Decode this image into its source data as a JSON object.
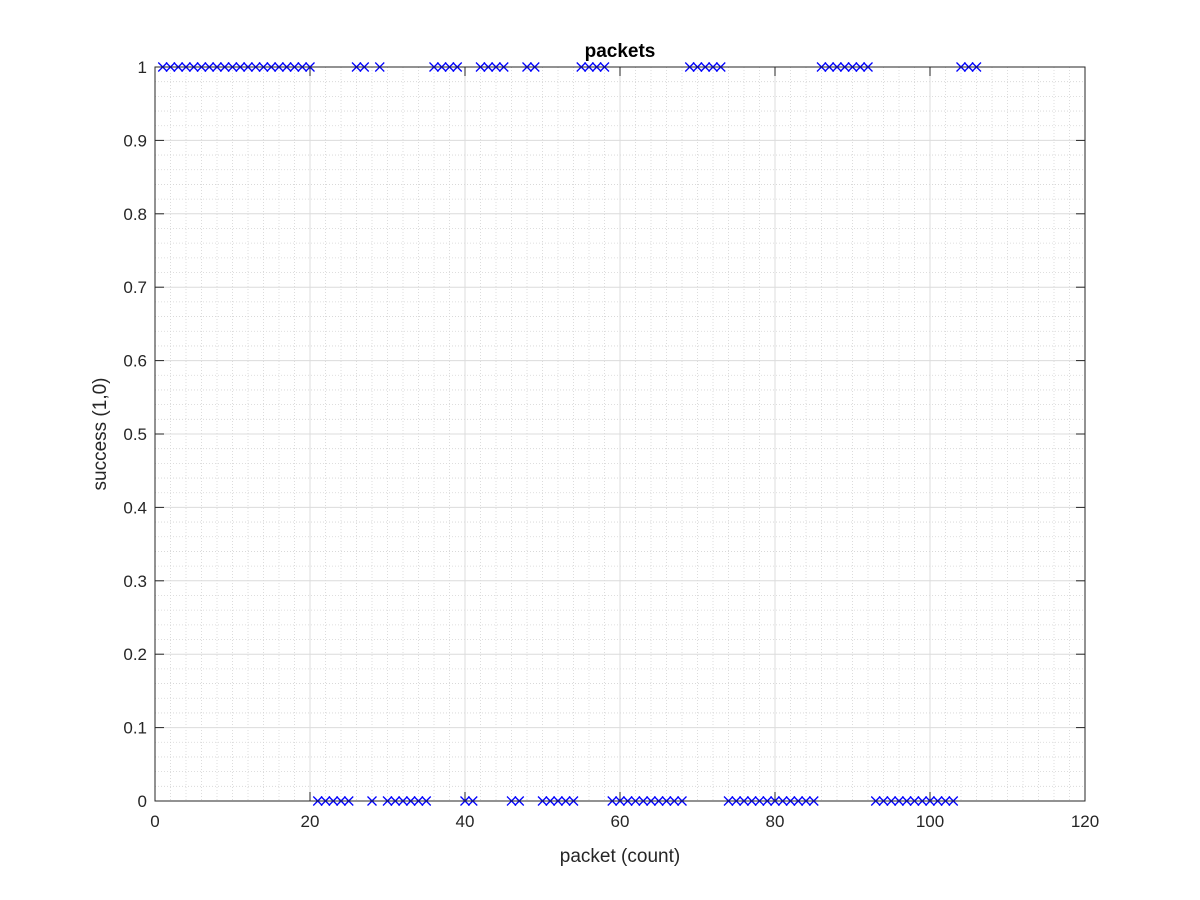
{
  "chart_data": {
    "type": "scatter",
    "title": "packets",
    "xlabel": "packet (count)",
    "ylabel": "success (1,0)",
    "xlim": [
      0,
      120
    ],
    "ylim": [
      0,
      1
    ],
    "xticks": [
      0,
      20,
      40,
      60,
      80,
      100,
      120
    ],
    "yticks": [
      0,
      0.1,
      0.2,
      0.3,
      0.4,
      0.5,
      0.6,
      0.7,
      0.8,
      0.9,
      1
    ],
    "grid": true,
    "minor_grid": true,
    "marker": "x",
    "color": "#0000ff",
    "series": [
      {
        "name": "success",
        "x": [
          1,
          2,
          3,
          4,
          5,
          6,
          7,
          8,
          9,
          10,
          11,
          12,
          13,
          14,
          15,
          16,
          17,
          18,
          19,
          20,
          21,
          22,
          23,
          24,
          25,
          26,
          27,
          28,
          29,
          30,
          31,
          32,
          33,
          34,
          35,
          36,
          37,
          38,
          39,
          40,
          41,
          42,
          43,
          44,
          45,
          46,
          47,
          48,
          49,
          50,
          51,
          52,
          53,
          54,
          55,
          56,
          57,
          58,
          59,
          60,
          61,
          62,
          63,
          64,
          65,
          66,
          67,
          68,
          69,
          70,
          71,
          72,
          73,
          74,
          75,
          76,
          77,
          78,
          79,
          80,
          81,
          82,
          83,
          84,
          85,
          86,
          87,
          88,
          89,
          90,
          91,
          92,
          93,
          94,
          95,
          96,
          97,
          98,
          99,
          100,
          101,
          102,
          103,
          104,
          105,
          106
        ],
        "y": [
          1,
          1,
          1,
          1,
          1,
          1,
          1,
          1,
          1,
          1,
          1,
          1,
          1,
          1,
          1,
          1,
          1,
          1,
          1,
          1,
          0,
          0,
          0,
          0,
          0,
          1,
          1,
          0,
          1,
          0,
          0,
          0,
          0,
          0,
          0,
          1,
          1,
          1,
          1,
          0,
          0,
          1,
          1,
          1,
          1,
          0,
          0,
          1,
          1,
          0,
          0,
          0,
          0,
          0,
          1,
          1,
          1,
          1,
          0,
          0,
          0,
          0,
          0,
          0,
          0,
          0,
          0,
          0,
          1,
          1,
          1,
          1,
          1,
          0,
          0,
          0,
          0,
          0,
          0,
          0,
          0,
          0,
          0,
          0,
          0,
          1,
          1,
          1,
          1,
          1,
          1,
          1,
          0,
          0,
          0,
          0,
          0,
          0,
          0,
          0,
          0,
          0,
          0,
          1,
          1,
          1
        ]
      }
    ]
  }
}
